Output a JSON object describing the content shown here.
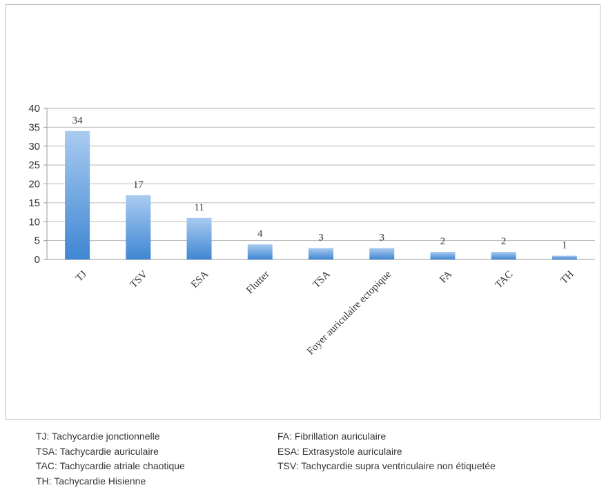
{
  "chart_data": {
    "type": "bar",
    "title": "",
    "xlabel": "",
    "ylabel": "",
    "categories": [
      "TJ",
      "TSV",
      "ESA",
      "Flutter",
      "TSA",
      "Foyer auriculaire ectopique",
      "FA",
      "TAC",
      "TH"
    ],
    "values": [
      34,
      17,
      11,
      4,
      3,
      3,
      2,
      2,
      1
    ],
    "ylim": [
      0,
      40
    ],
    "yticks": [
      0,
      5,
      10,
      15,
      20,
      25,
      30,
      35,
      40
    ],
    "grid": true,
    "data_labels": true,
    "legend": false,
    "bar_color": "#4a90d9"
  },
  "legend_notes": {
    "left": [
      "TJ: Tachycardie jonctionnelle",
      "TSA: Tachycardie auriculaire",
      "TAC: Tachycardie atriale chaotique",
      "TH: Tachycardie Hisienne"
    ],
    "right": [
      "FA: Fibrillation auriculaire",
      "ESA: Extrasystole auriculaire",
      "TSV: Tachycardie supra ventriculaire non étiquetée"
    ]
  }
}
